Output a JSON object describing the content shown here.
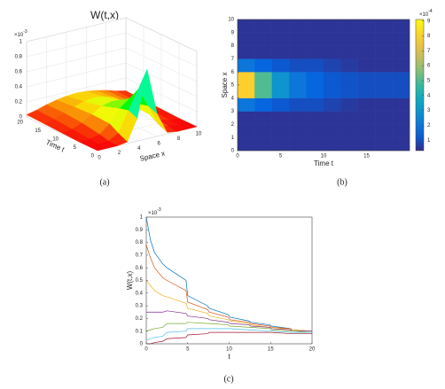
{
  "chart_data": [
    {
      "type": "surface",
      "title": "W(t,x)",
      "xlabel": "Space x",
      "ylabel": "Time t",
      "caption": "(a)",
      "scale_label": {
        "base": "×10",
        "exponent": "-3"
      },
      "colormap": "hsv",
      "grid": true,
      "t": [
        0,
        2.5,
        5,
        10,
        15,
        20
      ],
      "x": [
        0,
        1,
        2,
        3,
        4,
        5,
        6,
        7,
        8,
        9,
        10
      ],
      "z": [
        [
          0,
          0,
          0,
          0.02,
          0.3,
          0.92,
          0.3,
          0.02,
          0,
          0,
          0
        ],
        [
          0,
          0,
          0.01,
          0.08,
          0.35,
          0.6,
          0.35,
          0.08,
          0.01,
          0,
          0
        ],
        [
          0,
          0.01,
          0.04,
          0.15,
          0.32,
          0.42,
          0.32,
          0.15,
          0.04,
          0.01,
          0
        ],
        [
          0.01,
          0.03,
          0.08,
          0.16,
          0.24,
          0.27,
          0.24,
          0.16,
          0.08,
          0.03,
          0.01
        ],
        [
          0.02,
          0.05,
          0.1,
          0.15,
          0.19,
          0.21,
          0.19,
          0.15,
          0.1,
          0.05,
          0.02
        ],
        [
          0.03,
          0.06,
          0.1,
          0.13,
          0.15,
          0.16,
          0.15,
          0.13,
          0.1,
          0.06,
          0.03
        ]
      ],
      "tlim": [
        0,
        20
      ],
      "xlim": [
        0,
        10
      ],
      "zlim": [
        0,
        1
      ],
      "tticks": [
        0,
        5,
        10,
        15,
        20
      ],
      "xticks": [
        0,
        2,
        4,
        6,
        8,
        10
      ],
      "zticks": [
        0,
        0.2,
        0.4,
        0.6,
        0.8,
        1
      ]
    },
    {
      "type": "contour",
      "xlabel": "Time t",
      "ylabel": "Space x",
      "caption": "(b)",
      "scale_label": {
        "base": "×10",
        "exponent": "-4"
      },
      "colormap": "parula",
      "x_edges": [
        0,
        2,
        4,
        6,
        8,
        10,
        12,
        14,
        16,
        18,
        20
      ],
      "y_edges": [
        0,
        1,
        2,
        3,
        4,
        5,
        6,
        7,
        8,
        9,
        10
      ],
      "z": [
        [
          0.5,
          0.5,
          0.5,
          0.5,
          0.5,
          0.5,
          0.5,
          0.5,
          0.5,
          0.5
        ],
        [
          0.5,
          0.5,
          0.5,
          0.5,
          0.5,
          0.5,
          0.5,
          0.5,
          0.5,
          0.5
        ],
        [
          0.5,
          0.5,
          0.5,
          0.5,
          0.5,
          0.5,
          0.5,
          0.5,
          0.5,
          0.5
        ],
        [
          2,
          1.5,
          1.2,
          1,
          1,
          0.8,
          0.6,
          0.5,
          0.5,
          0.5
        ],
        [
          8,
          5,
          3,
          2,
          1.5,
          1.2,
          1.1,
          1,
          1,
          1
        ],
        [
          8,
          5,
          3,
          2,
          1.5,
          1.2,
          1.1,
          1,
          1,
          1
        ],
        [
          2,
          1.5,
          1.2,
          1,
          1,
          0.8,
          0.6,
          0.5,
          0.5,
          0.5
        ],
        [
          0.5,
          0.5,
          0.5,
          0.5,
          0.5,
          0.5,
          0.5,
          0.5,
          0.5,
          0.5
        ],
        [
          0.5,
          0.5,
          0.5,
          0.5,
          0.5,
          0.5,
          0.5,
          0.5,
          0.5,
          0.5
        ],
        [
          0.5,
          0.5,
          0.5,
          0.5,
          0.5,
          0.5,
          0.5,
          0.5,
          0.5,
          0.5
        ]
      ],
      "xlim": [
        0,
        20
      ],
      "ylim": [
        0,
        10
      ],
      "clim": [
        0.3,
        9.1
      ],
      "xticks": [
        0,
        5,
        10,
        15
      ],
      "yticks": [
        0,
        1,
        2,
        3,
        4,
        5,
        6,
        7,
        8,
        9,
        10
      ],
      "cticks": [
        1,
        2,
        3,
        4,
        5,
        6,
        7,
        8,
        9
      ]
    },
    {
      "type": "line",
      "xlabel": "t",
      "ylabel": "W(t,x)",
      "caption": "(c)",
      "scale_label": {
        "base": "×10",
        "exponent": "-3"
      },
      "x": [
        0,
        0.5,
        1,
        2,
        2.5,
        4.8,
        5,
        7.4,
        7.6,
        9.9,
        10.1,
        12.4,
        12.6,
        14.9,
        15.1,
        17.4,
        17.6,
        19.9,
        20
      ],
      "series": [
        {
          "color": "#0072bd",
          "values": [
            1,
            0.82,
            0.72,
            0.63,
            0.6,
            0.5,
            0.38,
            0.3,
            0.28,
            0.23,
            0.21,
            0.18,
            0.17,
            0.15,
            0.14,
            0.12,
            0.11,
            0.1,
            0.1
          ]
        },
        {
          "color": "#d95319",
          "values": [
            0.78,
            0.68,
            0.6,
            0.52,
            0.5,
            0.42,
            0.33,
            0.27,
            0.25,
            0.21,
            0.19,
            0.17,
            0.16,
            0.14,
            0.13,
            0.12,
            0.11,
            0.1,
            0.1
          ]
        },
        {
          "color": "#edb120",
          "values": [
            0.5,
            0.46,
            0.42,
            0.38,
            0.37,
            0.32,
            0.28,
            0.24,
            0.22,
            0.19,
            0.18,
            0.16,
            0.15,
            0.13,
            0.13,
            0.11,
            0.11,
            0.1,
            0.1
          ]
        },
        {
          "color": "#7e2f8e",
          "values": [
            0.25,
            0.25,
            0.25,
            0.25,
            0.26,
            0.24,
            0.22,
            0.2,
            0.19,
            0.17,
            0.16,
            0.15,
            0.14,
            0.13,
            0.12,
            0.11,
            0.1,
            0.1,
            0.1
          ]
        },
        {
          "color": "#77ac30",
          "values": [
            0.1,
            0.11,
            0.12,
            0.13,
            0.16,
            0.16,
            0.17,
            0.16,
            0.16,
            0.15,
            0.14,
            0.13,
            0.13,
            0.12,
            0.11,
            0.1,
            0.1,
            0.09,
            0.09
          ]
        },
        {
          "color": "#4dbeee",
          "values": [
            0.03,
            0.04,
            0.05,
            0.06,
            0.09,
            0.1,
            0.12,
            0.12,
            0.12,
            0.12,
            0.12,
            0.11,
            0.11,
            0.1,
            0.1,
            0.09,
            0.09,
            0.09,
            0.09
          ]
        },
        {
          "color": "#a2142f",
          "values": [
            0,
            0,
            0.01,
            0.02,
            0.04,
            0.05,
            0.07,
            0.08,
            0.09,
            0.09,
            0.09,
            0.09,
            0.09,
            0.09,
            0.09,
            0.08,
            0.08,
            0.08,
            0.08
          ]
        }
      ],
      "xlim": [
        0,
        20
      ],
      "ylim": [
        0,
        1
      ],
      "xticks": [
        0,
        5,
        10,
        15,
        20
      ],
      "yticks": [
        0,
        0.1,
        0.2,
        0.3,
        0.4,
        0.5,
        0.6,
        0.7,
        0.8,
        0.9,
        1
      ]
    }
  ]
}
